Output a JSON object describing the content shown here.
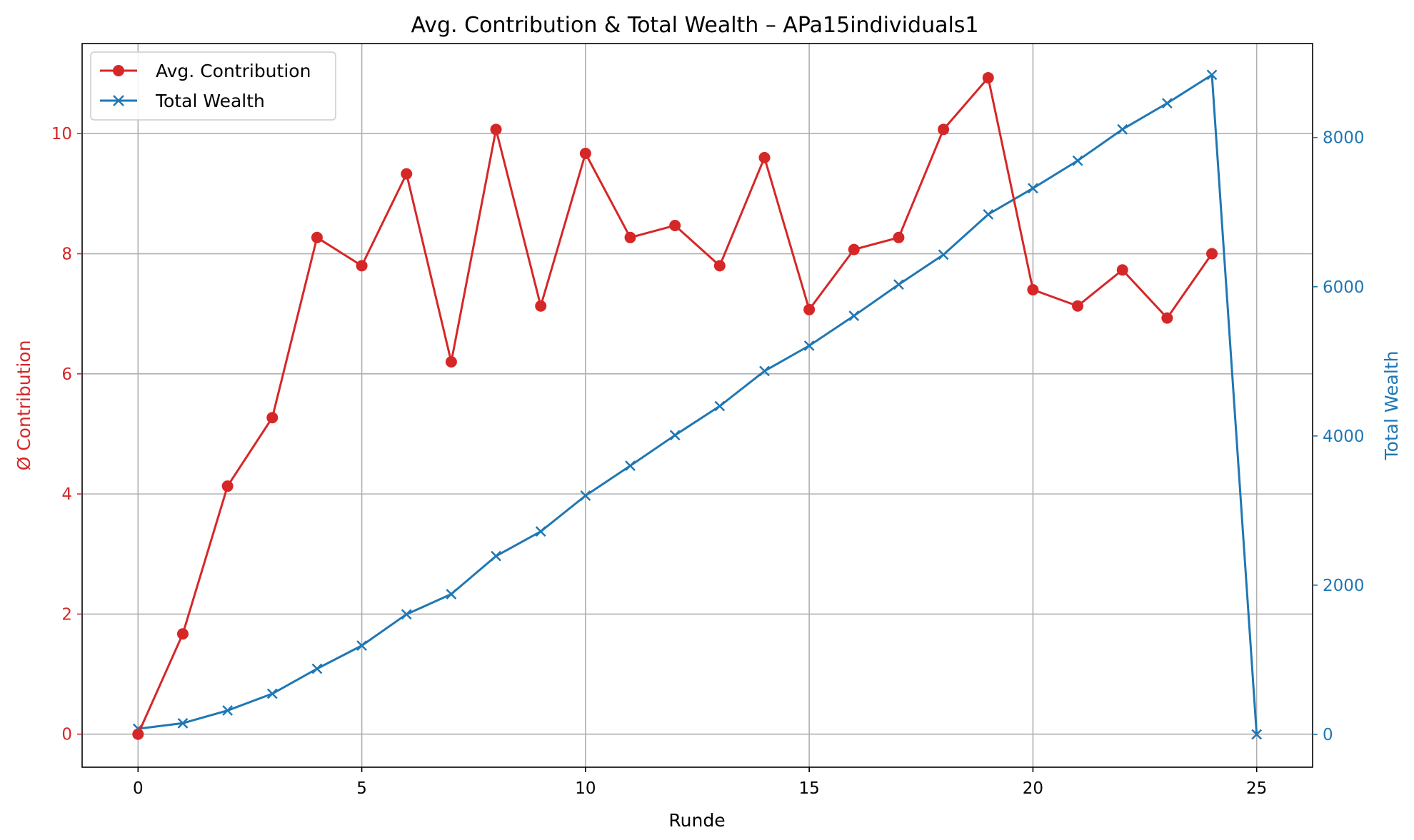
{
  "chart_data": {
    "type": "line",
    "title": "Avg. Contribution & Total Wealth – APa15individuals1",
    "xlabel": "Runde",
    "ylabel_left": "Ø Contribution",
    "ylabel_right": "Total Wealth",
    "xlim": [
      -1.25,
      26.25
    ],
    "ylim_left": [
      -0.55,
      11.5
    ],
    "ylim_right": [
      -440,
      9260
    ],
    "x_ticks": [
      0,
      5,
      10,
      15,
      20,
      25
    ],
    "y_left_ticks": [
      0,
      2,
      4,
      6,
      8,
      10
    ],
    "y_right_ticks": [
      0,
      2000,
      4000,
      6000,
      8000
    ],
    "grid": true,
    "legend_position": "top-left",
    "colors": {
      "left": "#d62728",
      "right": "#1f77b4"
    },
    "series": [
      {
        "name": "Avg. Contribution",
        "axis": "left",
        "marker": "circle",
        "x": [
          0,
          1,
          2,
          3,
          4,
          5,
          6,
          7,
          8,
          9,
          10,
          11,
          12,
          13,
          14,
          15,
          16,
          17,
          18,
          19,
          20,
          21,
          22,
          23,
          24
        ],
        "values": [
          0.0,
          1.67,
          4.13,
          5.27,
          8.27,
          7.8,
          9.33,
          6.2,
          10.07,
          7.13,
          9.67,
          8.27,
          8.47,
          7.8,
          9.6,
          7.07,
          8.07,
          8.27,
          10.07,
          10.93,
          7.4,
          7.13,
          7.73,
          6.93,
          8.0
        ]
      },
      {
        "name": "Total Wealth",
        "axis": "right",
        "marker": "x",
        "x": [
          0,
          1,
          2,
          3,
          4,
          5,
          6,
          7,
          8,
          9,
          10,
          11,
          12,
          13,
          14,
          15,
          16,
          17,
          18,
          19,
          20,
          21,
          22,
          23,
          24,
          25
        ],
        "values": [
          75,
          150,
          320,
          545,
          880,
          1190,
          1610,
          1880,
          2390,
          2720,
          3200,
          3600,
          4010,
          4400,
          4870,
          5210,
          5610,
          6030,
          6430,
          6970,
          7320,
          7690,
          8110,
          8460,
          8840,
          0
        ]
      }
    ]
  }
}
